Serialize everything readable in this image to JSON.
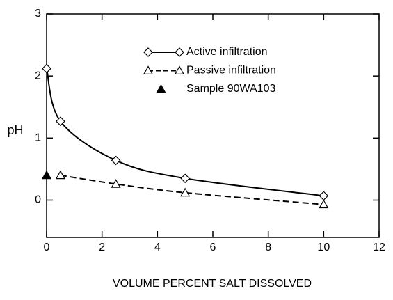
{
  "chart_data": {
    "type": "line",
    "xlabel": "VOLUME PERCENT SALT DISSOLVED",
    "ylabel": "pH",
    "xlim": [
      0,
      12
    ],
    "xticks": [
      0,
      2,
      4,
      6,
      8,
      10,
      12
    ],
    "ylim": [
      -0.6,
      3
    ],
    "yticks": [
      0,
      1,
      2,
      3
    ],
    "legend": "top",
    "series": [
      {
        "name": "Active infiltration",
        "color": "#000000",
        "marker": "diamond",
        "line": "solid",
        "x": [
          0,
          0.5,
          2.5,
          5,
          10
        ],
        "values": [
          2.12,
          1.27,
          0.64,
          0.35,
          0.07
        ]
      },
      {
        "name": "Passive infiltration",
        "color": "#000000",
        "marker": "triangle",
        "line": "dashed",
        "x": [
          0.5,
          2.5,
          5,
          10
        ],
        "values": [
          0.4,
          0.26,
          0.12,
          -0.07
        ]
      },
      {
        "name": "Sample 90WA103",
        "color": "#000000",
        "marker": "triangle-filled",
        "line": "none",
        "x": [
          0
        ],
        "values": [
          0.4
        ]
      }
    ]
  }
}
